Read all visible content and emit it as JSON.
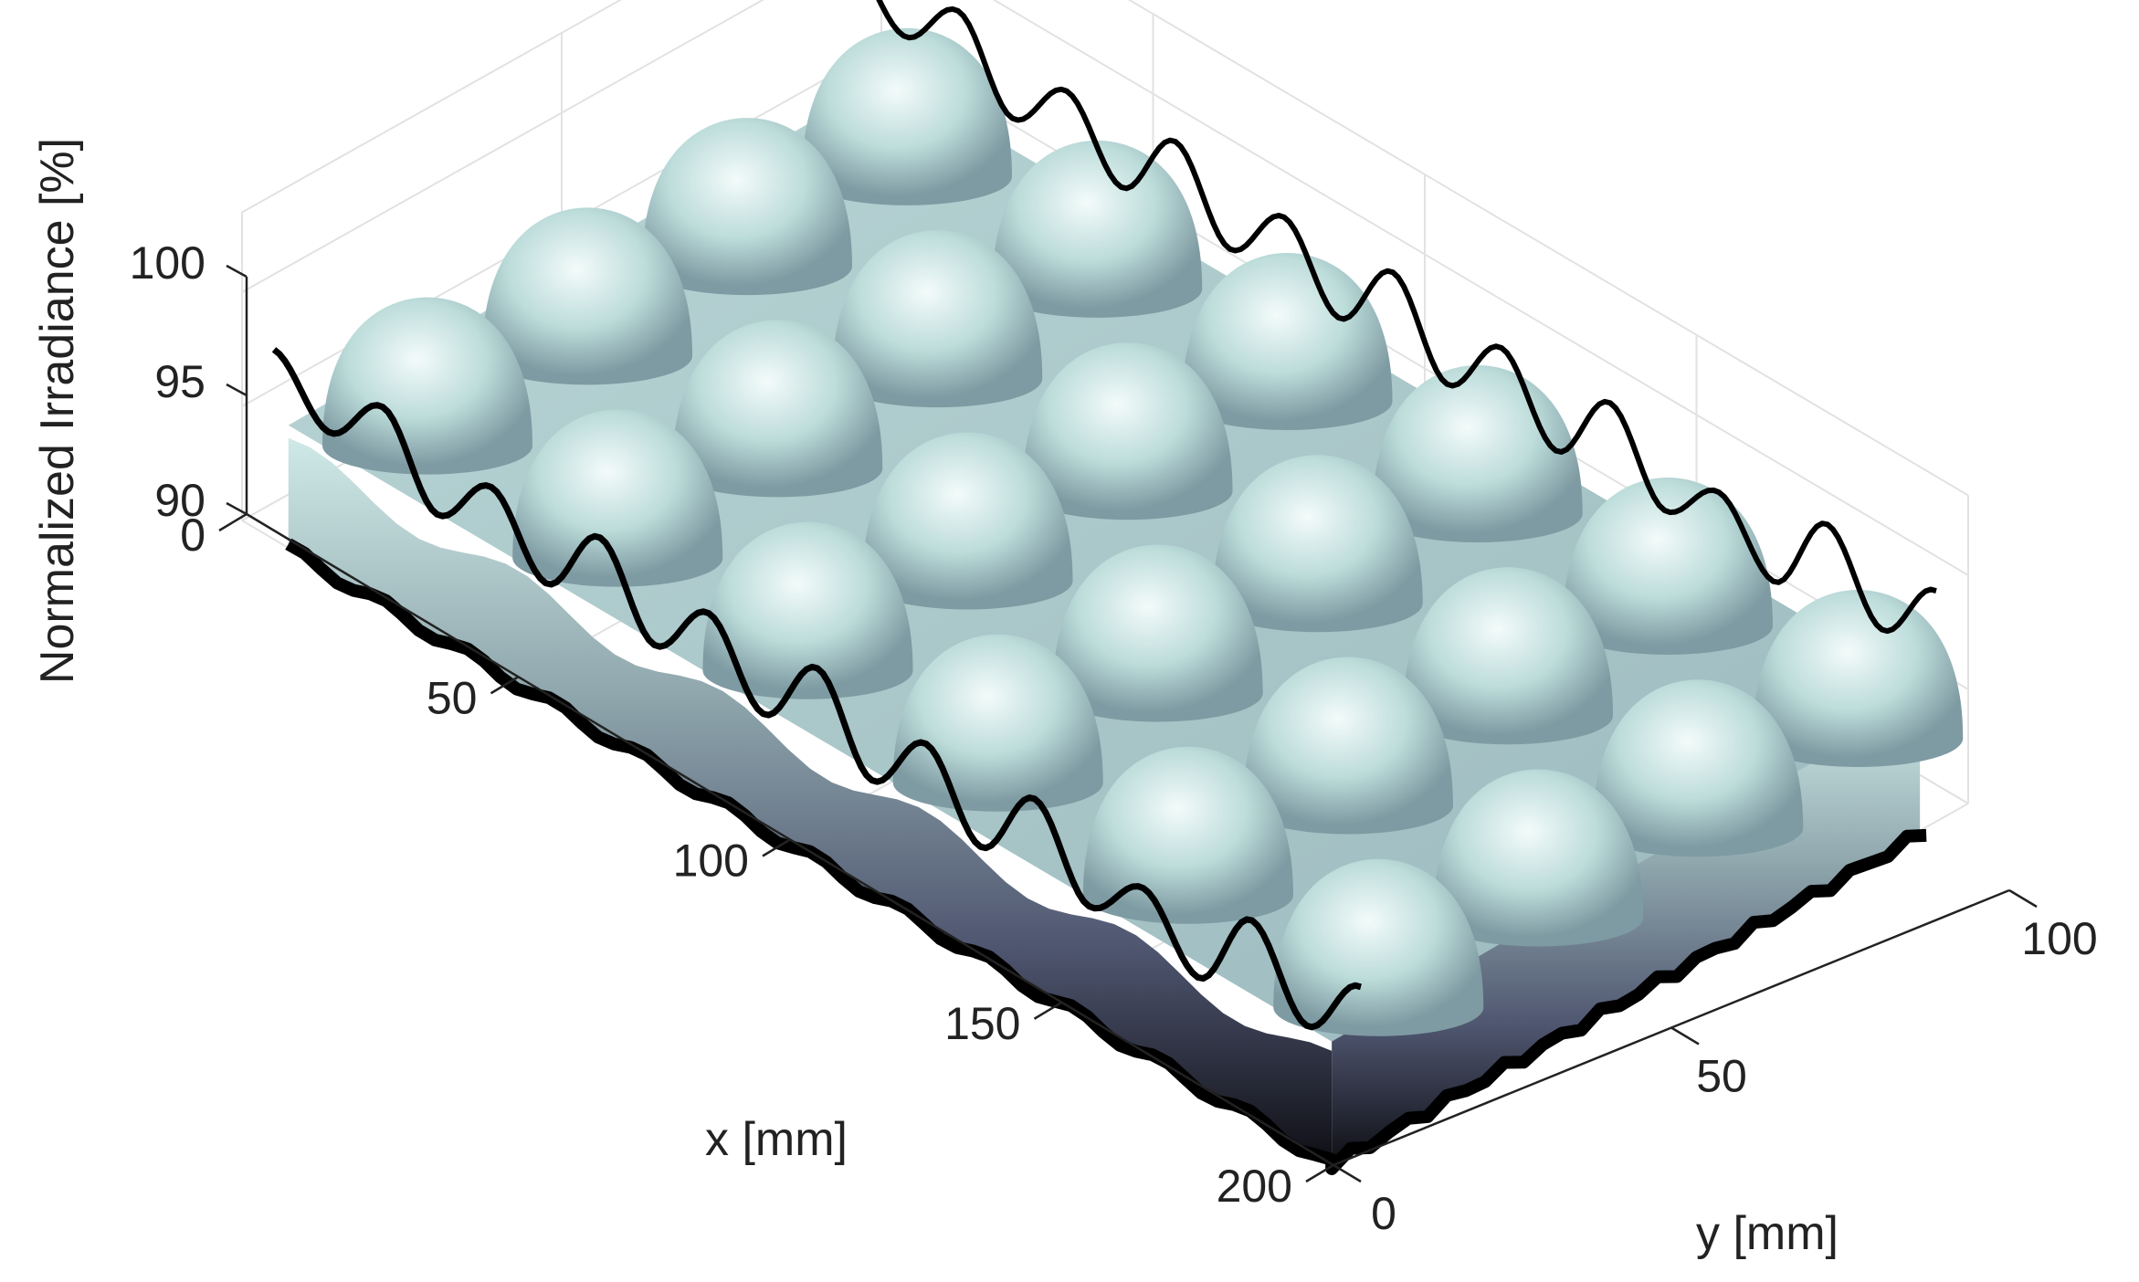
{
  "chart_data": {
    "type": "surface",
    "view": "3d",
    "colormap": "bone",
    "grid": true,
    "xlabel": "x [mm]",
    "ylabel": "y [mm]",
    "zlabel": "Normalized Irradiance [%]",
    "xlim": [
      0,
      200
    ],
    "ylim": [
      0,
      100
    ],
    "zlim": [
      90,
      100
    ],
    "xticks": [
      "0",
      "50",
      "100",
      "150",
      "200"
    ],
    "yticks": [
      "0",
      "50",
      "100"
    ],
    "zticks": [
      "90",
      "95",
      "100"
    ],
    "surface_peaks": {
      "x_positions_mm": [
        20,
        55,
        90,
        125,
        160,
        195
      ],
      "y_positions_mm": [
        12,
        37,
        62,
        87
      ],
      "peak_value_pct": 99.2,
      "valley_value_pct": 94.5
    },
    "profile_line": {
      "description_value": "cross-section at y = 50",
      "x": [
        0,
        10,
        20,
        30,
        40,
        50,
        60,
        70,
        80,
        90,
        100,
        110,
        120,
        130,
        140,
        150,
        160,
        170,
        180,
        190,
        200
      ],
      "y_pct": [
        98.2,
        96.0,
        98.5,
        95.2,
        97.8,
        95.0,
        98.4,
        95.1,
        97.9,
        94.9,
        98.3,
        94.8,
        97.8,
        94.7,
        98.2,
        94.9,
        97.1,
        94.6,
        98.5,
        95.3,
        98.4
      ]
    }
  }
}
